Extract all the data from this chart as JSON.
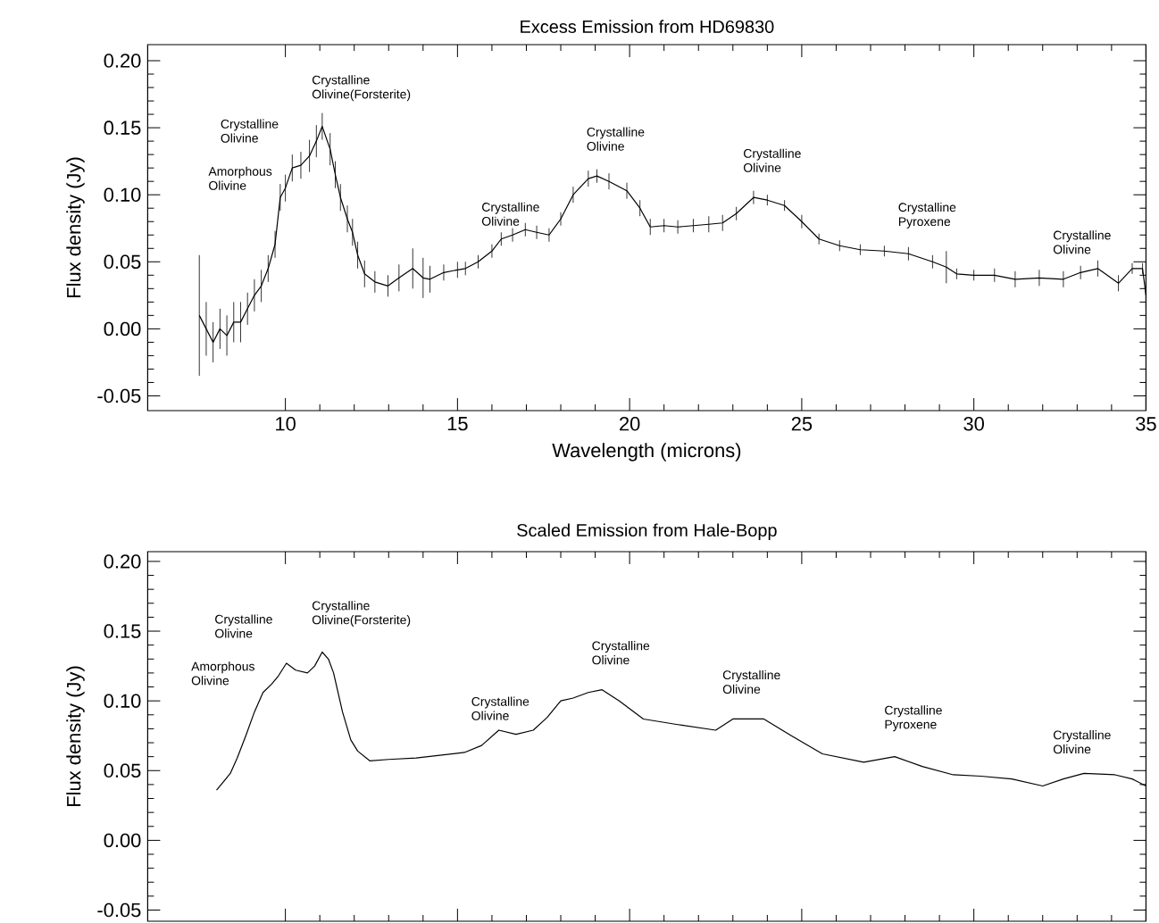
{
  "chart_data": [
    {
      "type": "line",
      "title": "Excess Emission from HD69830",
      "xlabel": "Wavelength (microns)",
      "ylabel": "Flux density (Jy)",
      "color": "#000000",
      "x": [
        7.5,
        7.7,
        7.9,
        8.1,
        8.3,
        8.5,
        8.7,
        8.9,
        9.1,
        9.3,
        9.5,
        9.7,
        9.85,
        10.0,
        10.2,
        10.45,
        10.7,
        10.9,
        11.07,
        11.3,
        11.45,
        11.6,
        11.8,
        11.95,
        12.1,
        12.3,
        12.6,
        12.98,
        13.3,
        13.7,
        14.0,
        14.2,
        14.6,
        15.0,
        15.23,
        15.6,
        16.0,
        16.27,
        16.6,
        16.97,
        17.3,
        17.66,
        18.0,
        18.36,
        18.8,
        19.05,
        19.4,
        19.92,
        20.3,
        20.6,
        21.0,
        21.4,
        21.85,
        22.3,
        22.7,
        23.1,
        23.6,
        24.0,
        24.5,
        25.0,
        25.5,
        26.1,
        26.7,
        27.4,
        28.1,
        28.8,
        29.2,
        29.5,
        30.0,
        30.6,
        31.2,
        31.9,
        32.6,
        33.1,
        33.6,
        34.2,
        34.6,
        34.9,
        35.0
      ],
      "values": [
        0.01,
        0.0,
        -0.01,
        0.0,
        -0.005,
        0.005,
        0.005,
        0.015,
        0.025,
        0.032,
        0.045,
        0.063,
        0.098,
        0.105,
        0.12,
        0.122,
        0.129,
        0.14,
        0.151,
        0.134,
        0.115,
        0.098,
        0.082,
        0.072,
        0.055,
        0.041,
        0.035,
        0.032,
        0.038,
        0.045,
        0.038,
        0.037,
        0.042,
        0.044,
        0.045,
        0.05,
        0.058,
        0.067,
        0.07,
        0.074,
        0.072,
        0.07,
        0.082,
        0.1,
        0.112,
        0.114,
        0.11,
        0.103,
        0.09,
        0.076,
        0.077,
        0.076,
        0.077,
        0.078,
        0.079,
        0.086,
        0.098,
        0.096,
        0.092,
        0.08,
        0.067,
        0.062,
        0.059,
        0.058,
        0.056,
        0.05,
        0.046,
        0.041,
        0.04,
        0.04,
        0.037,
        0.038,
        0.037,
        0.042,
        0.045,
        0.034,
        0.045,
        0.045,
        0.025
      ],
      "errors": [
        0.045,
        0.02,
        0.015,
        0.015,
        0.015,
        0.015,
        0.015,
        0.012,
        0.012,
        0.012,
        0.01,
        0.01,
        0.01,
        0.01,
        0.01,
        0.01,
        0.012,
        0.012,
        0.01,
        0.012,
        0.01,
        0.01,
        0.01,
        0.01,
        0.01,
        0.01,
        0.008,
        0.008,
        0.01,
        0.015,
        0.015,
        0.01,
        0.006,
        0.006,
        0.005,
        0.005,
        0.005,
        0.005,
        0.005,
        0.005,
        0.005,
        0.005,
        0.005,
        0.006,
        0.006,
        0.005,
        0.006,
        0.006,
        0.006,
        0.006,
        0.005,
        0.005,
        0.005,
        0.006,
        0.006,
        0.005,
        0.005,
        0.004,
        0.004,
        0.005,
        0.004,
        0.004,
        0.004,
        0.004,
        0.005,
        0.005,
        0.012,
        0.004,
        0.004,
        0.005,
        0.006,
        0.006,
        0.006,
        0.005,
        0.006,
        0.006,
        0.004,
        0.004,
        0.01
      ],
      "xlim": [
        6,
        35
      ],
      "ylim": [
        -0.061,
        0.212
      ],
      "xticks": [
        10,
        15,
        20,
        25,
        30,
        35
      ],
      "yticks": [
        -0.05,
        {
          "value": 0,
          "label": "0.00"
        },
        0.05,
        {
          "value": 0.1,
          "label": "0.10"
        },
        0.15,
        {
          "value": 0.2,
          "label": "0.20"
        }
      ],
      "annotations": [
        {
          "text": "Amorphous Olivine",
          "x": 9.85,
          "y": 0.098
        },
        {
          "text": "Crystalline Olivine",
          "x": 10.2,
          "y": 0.12
        },
        {
          "text": "Crystalline Olivine(Forsterite)",
          "x": 11.07,
          "y": 0.151
        },
        {
          "text": "Crystalline Olivine",
          "x": 16.0,
          "y": 0.058
        },
        {
          "text": "Crystalline Olivine",
          "x": 19.05,
          "y": 0.114
        },
        {
          "text": "Crystalline Olivine",
          "x": 23.6,
          "y": 0.098
        },
        {
          "text": "Crystalline Pyroxene",
          "x": 28.1,
          "y": 0.056
        },
        {
          "text": "Crystalline Olivine",
          "x": 32.6,
          "y": 0.037
        }
      ]
    },
    {
      "type": "line",
      "title": "Scaled Emission from Hale-Bopp",
      "ylabel": "Flux density (Jy)",
      "color": "#000000",
      "tick_labels": "y",
      "x": [
        8.0,
        8.2,
        8.4,
        8.6,
        8.85,
        9.1,
        9.35,
        9.6,
        9.8,
        10.03,
        10.3,
        10.64,
        10.85,
        11.07,
        11.25,
        11.4,
        11.66,
        11.9,
        12.1,
        12.45,
        13.0,
        13.8,
        14.5,
        15.2,
        15.7,
        16.2,
        16.7,
        17.2,
        17.6,
        18.0,
        18.36,
        18.8,
        19.2,
        19.7,
        20.4,
        21.4,
        22.5,
        23.0,
        23.9,
        24.7,
        25.6,
        26.8,
        27.7,
        28.5,
        29.4,
        30.2,
        31.1,
        32.0,
        32.6,
        33.2,
        34.1,
        34.6,
        35.0
      ],
      "values": [
        0.036,
        0.042,
        0.048,
        0.059,
        0.075,
        0.092,
        0.106,
        0.112,
        0.118,
        0.127,
        0.122,
        0.12,
        0.125,
        0.135,
        0.13,
        0.12,
        0.092,
        0.072,
        0.064,
        0.057,
        0.058,
        0.059,
        0.061,
        0.063,
        0.068,
        0.079,
        0.076,
        0.079,
        0.088,
        0.1,
        0.102,
        0.106,
        0.108,
        0.1,
        0.087,
        0.083,
        0.079,
        0.087,
        0.087,
        0.075,
        0.062,
        0.056,
        0.06,
        0.053,
        0.047,
        0.046,
        0.044,
        0.039,
        0.044,
        0.048,
        0.047,
        0.044,
        0.039
      ],
      "xlim": [
        6,
        35
      ],
      "ylim": [
        -0.058,
        0.207
      ],
      "xticks": [
        10,
        15,
        20,
        25,
        30,
        35
      ],
      "yticks": [
        -0.05,
        {
          "value": 0,
          "label": "0.00"
        },
        0.05,
        {
          "value": 0.1,
          "label": "0.10"
        },
        0.15,
        {
          "value": 0.2,
          "label": "0.20"
        }
      ],
      "annotations": [
        {
          "text": "Amorphous Olivine",
          "x": 9.35,
          "y": 0.106
        },
        {
          "text": "Crystalline Olivine",
          "x": 10.03,
          "y": 0.127
        },
        {
          "text": "Crystalline Olivine(Forsterite)",
          "x": 11.07,
          "y": 0.135
        },
        {
          "text": "Crystalline Olivine",
          "x": 15.7,
          "y": 0.068
        },
        {
          "text": "Crystalline Olivine",
          "x": 19.2,
          "y": 0.108
        },
        {
          "text": "Crystalline Olivine",
          "x": 23.0,
          "y": 0.087
        },
        {
          "text": "Crystalline Pyroxene",
          "x": 27.7,
          "y": 0.06
        },
        {
          "text": "Crystalline Olivine",
          "x": 32.6,
          "y": 0.044
        }
      ]
    }
  ]
}
